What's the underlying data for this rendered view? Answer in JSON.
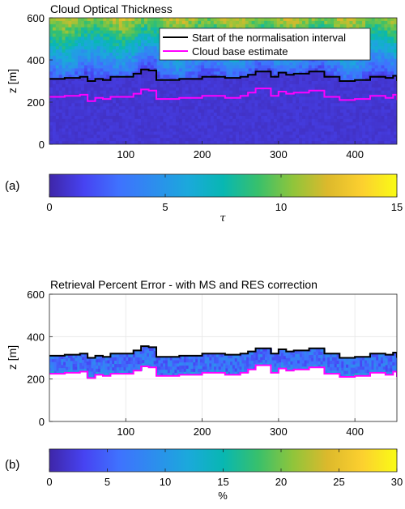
{
  "colors": {
    "normalisation_line": "#000000",
    "cloud_base_line": "#ff00ff",
    "parula": [
      "#3e26a8",
      "#4743f2",
      "#3f72fe",
      "#2d8dee",
      "#1ba9db",
      "#08b7b2",
      "#38c06c",
      "#8fc53b",
      "#dcb92c",
      "#fcd02f",
      "#f9fb15"
    ]
  },
  "chart_data": [
    {
      "type": "heatmap",
      "panel_label": "(a)",
      "title": "Cloud Optical Thickness",
      "xlabel": "",
      "ylabel": "z [m]",
      "xlim": [
        0,
        455
      ],
      "ylim": [
        0,
        600
      ],
      "xticks": [
        "100",
        "200",
        "300",
        "400"
      ],
      "xtick_values": [
        100,
        200,
        300,
        400
      ],
      "yticks": [
        "0",
        "200",
        "400",
        "600"
      ],
      "ytick_values": [
        0,
        200,
        400,
        600
      ],
      "grid": false,
      "legend_position": "top-right",
      "series": [
        {
          "name": "Start of the normalisation interval",
          "x": [
            0,
            20,
            40,
            50,
            60,
            70,
            80,
            110,
            120,
            130,
            140,
            170,
            200,
            230,
            250,
            260,
            270,
            290,
            300,
            310,
            320,
            340,
            360,
            380,
            400,
            420,
            440,
            450,
            455
          ],
          "y": [
            310,
            315,
            320,
            300,
            310,
            305,
            320,
            335,
            355,
            350,
            305,
            310,
            320,
            315,
            320,
            330,
            345,
            320,
            340,
            330,
            335,
            345,
            320,
            300,
            305,
            320,
            315,
            325,
            300
          ]
        },
        {
          "name": "Cloud base estimate",
          "x": [
            0,
            20,
            40,
            50,
            60,
            70,
            80,
            110,
            120,
            130,
            140,
            170,
            200,
            230,
            250,
            260,
            270,
            290,
            300,
            310,
            320,
            340,
            360,
            380,
            400,
            420,
            440,
            450,
            455
          ],
          "y": [
            225,
            230,
            235,
            205,
            220,
            215,
            225,
            240,
            260,
            255,
            215,
            220,
            230,
            220,
            230,
            245,
            265,
            230,
            250,
            240,
            245,
            255,
            225,
            210,
            215,
            230,
            220,
            235,
            210
          ]
        }
      ],
      "heatmap": {
        "description_values": "tau increases upward from about 1 below the normalisation line to about 12 near the top",
        "colorbar": {
          "label": "τ",
          "range": [
            0,
            15
          ],
          "ticks": [
            "0",
            "5",
            "10",
            "15"
          ],
          "tick_values": [
            0,
            5,
            10,
            15
          ]
        }
      }
    },
    {
      "type": "heatmap",
      "panel_label": "(b)",
      "title": "Retrieval Percent Error - with MS and RES correction",
      "xlabel": "",
      "ylabel": "z [m]",
      "xlim": [
        0,
        455
      ],
      "ylim": [
        0,
        600
      ],
      "xticks": [
        "100",
        "200",
        "300",
        "400"
      ],
      "xtick_values": [
        100,
        200,
        300,
        400
      ],
      "yticks": [
        "0",
        "200",
        "400",
        "600"
      ],
      "ytick_values": [
        0,
        200,
        400,
        600
      ],
      "grid": true,
      "heatmap": {
        "description_values": "percent error mostly 3 to 10 between cloud base and normalisation line, blank elsewhere",
        "colorbar": {
          "label": "%",
          "range": [
            0,
            30
          ],
          "ticks": [
            "0",
            "5",
            "10",
            "15",
            "20",
            "25",
            "30"
          ],
          "tick_values": [
            0,
            5,
            10,
            15,
            20,
            25,
            30
          ]
        }
      }
    }
  ]
}
